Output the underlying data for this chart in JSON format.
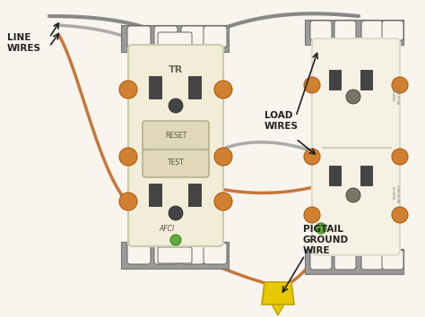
{
  "background_color": "#f8f4ee",
  "labels": {
    "line_wires": "LINE\nWIRES",
    "load_wires": "LOAD\nWIRES",
    "pigtail": "PIGTAIL\nGROUND\nWIRE"
  },
  "wire_copper": "#c8763a",
  "wire_gray1": "#888888",
  "wire_gray2": "#aaaaaa",
  "wire_dark": "#555555",
  "connector_yellow": "#e8c800",
  "screw_color": "#d08030",
  "outlet_left_color": "#f2edd8",
  "outlet_right_color": "#f5f1e5",
  "bracket_color": "#9a9a9a",
  "bracket_light": "#bbbbbb",
  "reset_color": "#e0d8b8",
  "slot_color": "#444444",
  "text_color": "#222222",
  "green_screw": "#60aa40"
}
